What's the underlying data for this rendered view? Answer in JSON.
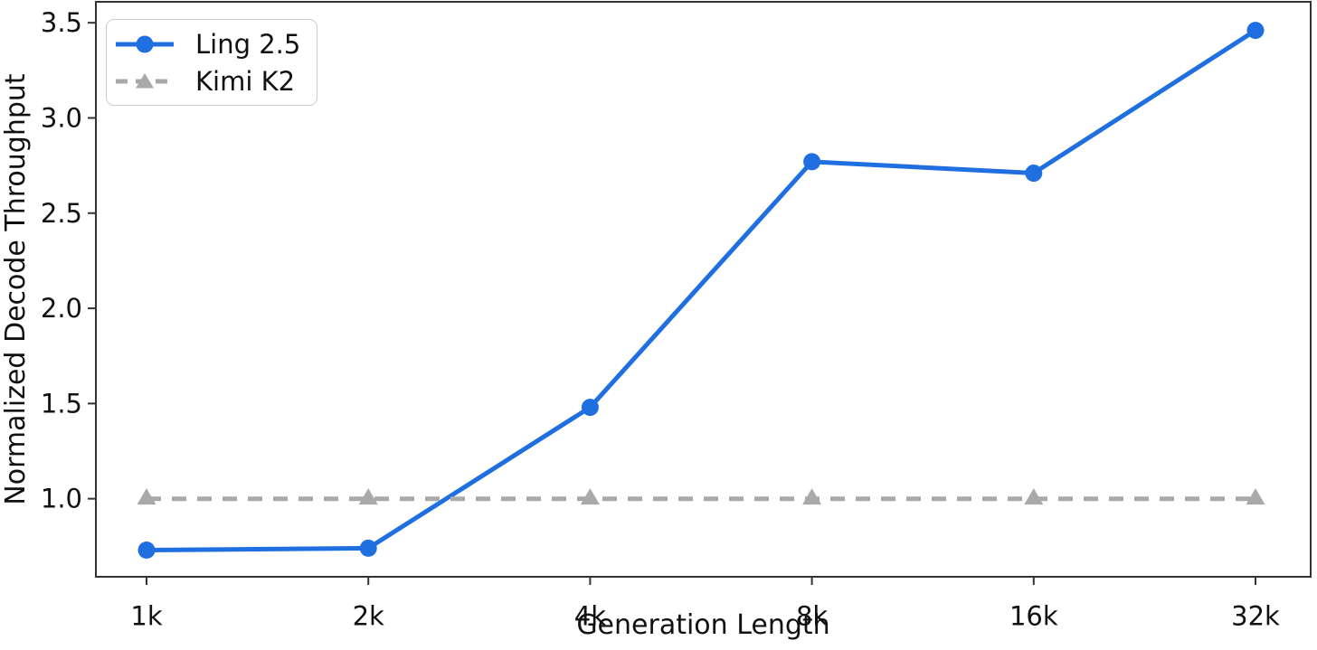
{
  "chart_data": {
    "type": "line",
    "title": "",
    "xlabel": "Generation Length",
    "ylabel": "Normalized Decode Throughput",
    "categories": [
      "1k",
      "2k",
      "4k",
      "8k",
      "16k",
      "32k"
    ],
    "series": [
      {
        "name": "Ling 2.5",
        "values": [
          0.73,
          0.74,
          1.48,
          2.77,
          2.71,
          3.46
        ],
        "color": "#1f6fe0",
        "style": "solid",
        "marker": "circle"
      },
      {
        "name": "Kimi K2",
        "values": [
          1.0,
          1.0,
          1.0,
          1.0,
          1.0,
          1.0
        ],
        "color": "#a9a9a9",
        "style": "dashed",
        "marker": "triangle-up"
      }
    ],
    "yticks": [
      1.0,
      1.5,
      2.0,
      2.5,
      3.0,
      3.5
    ],
    "ytick_labels": [
      "1.0",
      "1.5",
      "2.0",
      "2.5",
      "3.0",
      "3.5"
    ],
    "ylim": [
      0.59,
      3.61
    ],
    "legend_position": "upper-left",
    "grid": false,
    "axis_color": "#333333",
    "text_color": "#111111"
  }
}
